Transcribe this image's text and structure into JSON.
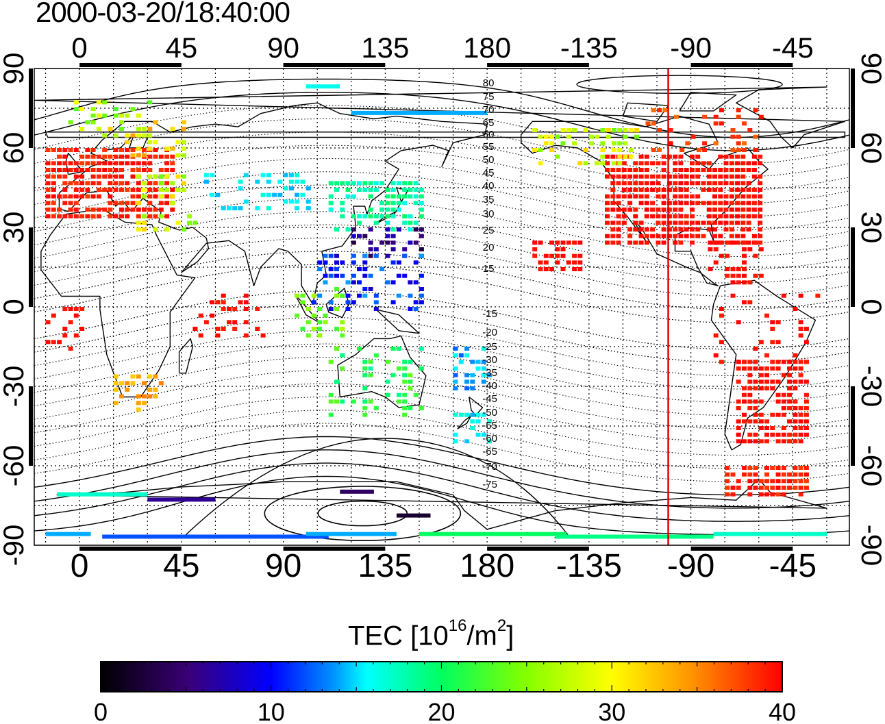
{
  "title": "2000-03-20/18:40:00",
  "map": {
    "lon_ticks": [
      "0",
      "45",
      "90",
      "135",
      "180",
      "-135",
      "-90",
      "-45"
    ],
    "lat_ticks": [
      "90",
      "60",
      "30",
      "0",
      "-30",
      "-60",
      "-90"
    ],
    "contour_labels_north": [
      "80",
      "75",
      "70",
      "65",
      "60",
      "55",
      "50",
      "45",
      "40",
      "35",
      "30",
      "25",
      "20",
      "15"
    ],
    "contour_labels_south": [
      "-15",
      "-20",
      "-25",
      "-30",
      "-35",
      "-40",
      "-45",
      "-50",
      "-55",
      "-60",
      "-65",
      "-70",
      "-75"
    ],
    "terminator_longitude": -100,
    "terminator_color": "#e00000",
    "land_color": "#000000",
    "grid": "dotted",
    "lon_range": [
      -20,
      340
    ],
    "lat_range": [
      -90,
      90
    ]
  },
  "colorbar": {
    "title_text": "TEC  [10",
    "title_exp": "16",
    "title_unit": "/m",
    "title_exp2": "2",
    "title_end": "]",
    "ticks": [
      "0",
      "10",
      "20",
      "30",
      "40"
    ],
    "range": [
      0,
      40
    ],
    "colors": [
      "#000000",
      "#3a0078",
      "#0000ff",
      "#00b0ff",
      "#00ffff",
      "#00ff60",
      "#80ff00",
      "#ffff00",
      "#ff9000",
      "#ff0000"
    ]
  }
}
